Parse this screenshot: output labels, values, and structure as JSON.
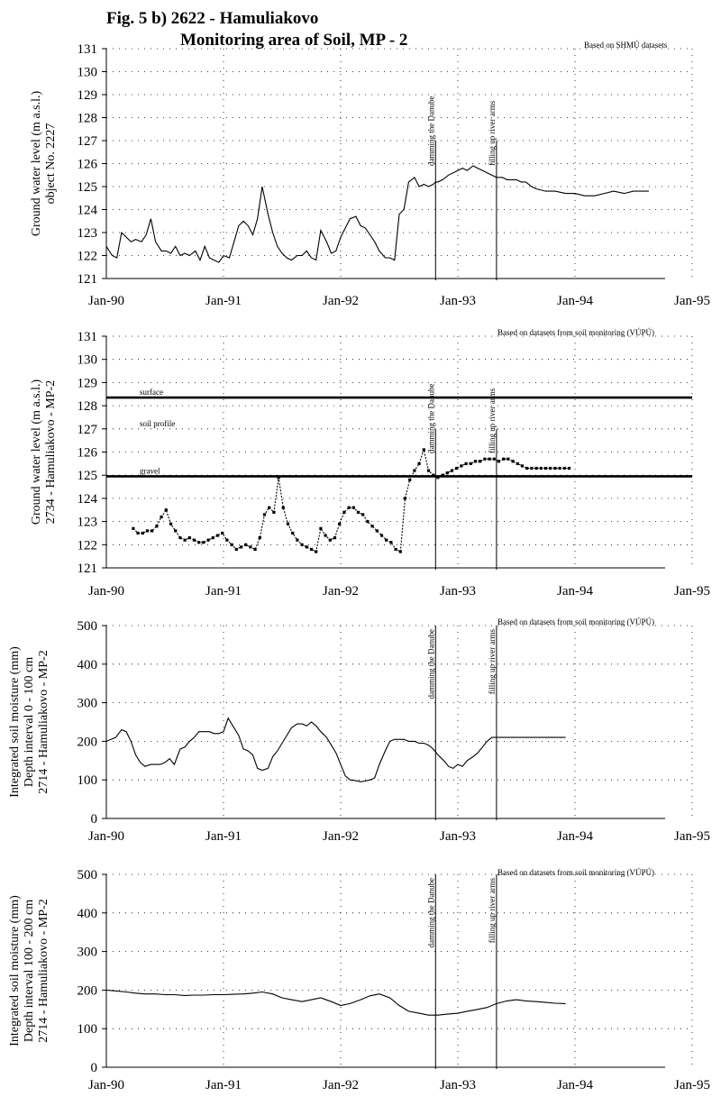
{
  "figure": {
    "title_line1": "Fig. 5 b)  2622 - Hamuliakovo",
    "title_line2": "Monitoring area of Soil, MP - 2"
  },
  "chart_data": [
    {
      "type": "line",
      "source_note": "Based on SHMÚ datasets",
      "ylabel": [
        "Ground water level (m a.s.l.)",
        "object No. 2227"
      ],
      "ylim": [
        121,
        131
      ],
      "yticks": [
        "121",
        "122",
        "123",
        "124",
        "125",
        "126",
        "127",
        "128",
        "129",
        "130",
        "131"
      ],
      "xlim": [
        1990.0,
        1995.0
      ],
      "xticks": [
        "Jan-90",
        "Jan-91",
        "Jan-92",
        "Jan-93",
        "Jan-94",
        "Jan-95"
      ],
      "grid": "dotted",
      "events": [
        {
          "label": "damming the Danube",
          "x": 1992.81
        },
        {
          "label": "filling up river arms",
          "x": 1993.33
        }
      ],
      "series": [
        {
          "x": [
            1990.0,
            1990.05,
            1990.09,
            1990.13,
            1990.17,
            1990.21,
            1990.25,
            1990.3,
            1990.34,
            1990.38,
            1990.42,
            1990.47,
            1990.51,
            1990.55,
            1990.59,
            1990.63,
            1990.67,
            1990.71,
            1990.76,
            1990.8,
            1990.84,
            1990.88,
            1990.92,
            1990.96,
            1991.0,
            1991.05,
            1991.09,
            1991.13,
            1991.17,
            1991.21,
            1991.25,
            1991.29,
            1991.33,
            1991.38,
            1991.42,
            1991.46,
            1991.5,
            1991.54,
            1991.58,
            1991.63,
            1991.67,
            1991.71,
            1991.75,
            1991.79,
            1991.83,
            1991.88,
            1991.92,
            1991.96,
            1992.0,
            1992.04,
            1992.08,
            1992.13,
            1992.17,
            1992.21,
            1992.25,
            1992.29,
            1992.33,
            1992.38,
            1992.42,
            1992.46,
            1992.5,
            1992.54,
            1992.58,
            1992.63,
            1992.67,
            1992.71,
            1992.75,
            1992.79,
            1992.81,
            1992.83,
            1992.87,
            1992.92,
            1992.96,
            1993.0,
            1993.04,
            1993.08,
            1993.13,
            1993.17,
            1993.21,
            1993.25,
            1993.29,
            1993.33,
            1993.38,
            1993.42,
            1993.46,
            1993.5,
            1993.54,
            1993.58,
            1993.63,
            1993.67,
            1993.75,
            1993.83,
            1993.92,
            1994.0,
            1994.08,
            1994.17,
            1994.25,
            1994.33,
            1994.42,
            1994.5,
            1994.58,
            1994.63
          ],
          "y": [
            122.4,
            122.0,
            121.9,
            123.0,
            122.8,
            122.6,
            122.7,
            122.6,
            122.9,
            123.6,
            122.6,
            122.2,
            122.2,
            122.1,
            122.4,
            122.0,
            122.1,
            122.0,
            122.2,
            121.8,
            122.4,
            121.9,
            121.8,
            121.7,
            122.0,
            121.9,
            122.6,
            123.3,
            123.5,
            123.3,
            122.9,
            123.6,
            125.0,
            123.8,
            123.0,
            122.4,
            122.1,
            121.9,
            121.8,
            122.0,
            122.0,
            122.2,
            121.9,
            121.8,
            123.1,
            122.6,
            122.1,
            122.2,
            122.8,
            123.2,
            123.6,
            123.7,
            123.3,
            123.2,
            122.9,
            122.6,
            122.2,
            121.9,
            121.9,
            121.8,
            123.8,
            124.0,
            125.2,
            125.4,
            125.0,
            125.1,
            125.0,
            125.1,
            125.2,
            125.2,
            125.3,
            125.5,
            125.6,
            125.7,
            125.8,
            125.7,
            125.9,
            125.8,
            125.7,
            125.6,
            125.5,
            125.4,
            125.4,
            125.3,
            125.3,
            125.3,
            125.2,
            125.2,
            125.0,
            124.9,
            124.8,
            124.8,
            124.7,
            124.7,
            124.6,
            124.6,
            124.7,
            124.8,
            124.7,
            124.8,
            124.8,
            124.8
          ]
        }
      ]
    },
    {
      "type": "line",
      "source_note": "Based on datasets from soil monitoring (VÚPÚ)",
      "ylabel": [
        "Ground water level (m a.s.l.)",
        "2734 - Hamuliakovo - MP-2"
      ],
      "ylim": [
        121,
        131
      ],
      "yticks": [
        "121",
        "122",
        "123",
        "124",
        "125",
        "126",
        "127",
        "128",
        "129",
        "130",
        "131"
      ],
      "xlim": [
        1990.0,
        1995.0
      ],
      "xticks": [
        "Jan-90",
        "Jan-91",
        "Jan-92",
        "Jan-93",
        "Jan-94",
        "Jan-95"
      ],
      "grid": "dotted",
      "levels": [
        {
          "label": "surface",
          "y": 128.35
        },
        {
          "label": "soil profile",
          "y": 127.0
        },
        {
          "label": "gravel",
          "y": 124.95
        }
      ],
      "events": [
        {
          "label": "damming the Danube",
          "x": 1992.81
        },
        {
          "label": "filling up river arms",
          "x": 1993.33
        }
      ],
      "series": [
        {
          "x": [
            1990.23,
            1990.27,
            1990.31,
            1990.35,
            1990.39,
            1990.43,
            1990.47,
            1990.51,
            1990.55,
            1990.59,
            1990.63,
            1990.67,
            1990.71,
            1990.75,
            1990.79,
            1990.83,
            1990.87,
            1990.91,
            1990.95,
            1990.99,
            1991.03,
            1991.07,
            1991.11,
            1991.15,
            1991.19,
            1991.23,
            1991.27,
            1991.31,
            1991.35,
            1991.39,
            1991.43,
            1991.47,
            1991.51,
            1991.55,
            1991.59,
            1991.63,
            1991.67,
            1991.71,
            1991.75,
            1991.79,
            1991.83,
            1991.87,
            1991.91,
            1991.95,
            1991.99,
            1992.03,
            1992.07,
            1992.11,
            1992.15,
            1992.19,
            1992.23,
            1992.27,
            1992.31,
            1992.35,
            1992.39,
            1992.43,
            1992.47,
            1992.51,
            1992.55,
            1992.59,
            1992.63,
            1992.67,
            1992.71,
            1992.75,
            1992.79,
            1992.83,
            1992.87,
            1992.91,
            1992.95,
            1992.99,
            1993.03,
            1993.07,
            1993.11,
            1993.15,
            1993.19,
            1993.23,
            1993.27,
            1993.31,
            1993.35,
            1993.39,
            1993.43,
            1993.47,
            1993.51,
            1993.55,
            1993.59,
            1993.63,
            1993.67,
            1993.71,
            1993.75,
            1993.79,
            1993.83,
            1993.87,
            1993.91,
            1993.95
          ],
          "y": [
            122.7,
            122.5,
            122.5,
            122.6,
            122.6,
            122.8,
            123.2,
            123.5,
            122.9,
            122.6,
            122.3,
            122.2,
            122.3,
            122.2,
            122.1,
            122.1,
            122.2,
            122.3,
            122.4,
            122.5,
            122.2,
            122.0,
            121.8,
            121.9,
            122.0,
            121.9,
            121.8,
            122.3,
            123.3,
            123.6,
            123.4,
            124.9,
            123.6,
            122.9,
            122.5,
            122.2,
            122.0,
            121.9,
            121.8,
            121.7,
            122.7,
            122.4,
            122.2,
            122.3,
            122.9,
            123.4,
            123.6,
            123.6,
            123.4,
            123.3,
            123.0,
            122.8,
            122.6,
            122.4,
            122.2,
            122.1,
            121.8,
            121.7,
            124.0,
            124.8,
            125.2,
            125.5,
            126.1,
            125.2,
            125.0,
            124.9,
            125.0,
            125.1,
            125.2,
            125.3,
            125.4,
            125.5,
            125.5,
            125.6,
            125.6,
            125.7,
            125.7,
            125.7,
            125.6,
            125.7,
            125.7,
            125.6,
            125.5,
            125.4,
            125.3,
            125.3,
            125.3,
            125.3,
            125.3,
            125.3,
            125.3,
            125.3,
            125.3,
            125.3
          ]
        }
      ]
    },
    {
      "type": "line",
      "source_note": "Based on datasets from soil monitoring (VÚPÚ)",
      "ylabel": [
        "Integrated soil moisture (mm)",
        "Depth interval  0 - 100 cm",
        "2714 - Hamuliakovo - MP-2"
      ],
      "ylim": [
        0,
        500
      ],
      "yticks": [
        "0",
        "100",
        "200",
        "300",
        "400",
        "500"
      ],
      "xlim": [
        1990.0,
        1995.0
      ],
      "xticks": [
        "Jan-90",
        "Jan-91",
        "Jan-92",
        "Jan-93",
        "Jan-94",
        "Jan-95"
      ],
      "grid": "dotted",
      "events": [
        {
          "label": "damming the Danube",
          "x": 1992.81
        },
        {
          "label": "filling up river arms",
          "x": 1993.33
        }
      ],
      "series": [
        {
          "x": [
            1990.0,
            1990.04,
            1990.08,
            1990.13,
            1990.17,
            1990.21,
            1990.25,
            1990.29,
            1990.33,
            1990.38,
            1990.42,
            1990.46,
            1990.5,
            1990.54,
            1990.58,
            1990.63,
            1990.67,
            1990.71,
            1990.75,
            1990.79,
            1990.83,
            1990.88,
            1990.92,
            1990.96,
            1991.0,
            1991.04,
            1991.08,
            1991.13,
            1991.17,
            1991.21,
            1991.25,
            1991.29,
            1991.33,
            1991.38,
            1991.42,
            1991.46,
            1991.5,
            1991.54,
            1991.58,
            1991.63,
            1991.67,
            1991.71,
            1991.75,
            1991.79,
            1991.83,
            1991.88,
            1991.92,
            1991.96,
            1992.0,
            1992.04,
            1992.08,
            1992.13,
            1992.17,
            1992.21,
            1992.25,
            1992.29,
            1992.33,
            1992.38,
            1992.42,
            1992.46,
            1992.5,
            1992.54,
            1992.58,
            1992.63,
            1992.67,
            1992.71,
            1992.75,
            1992.79,
            1992.83,
            1992.88,
            1992.92,
            1992.96,
            1993.0,
            1993.04,
            1993.08,
            1993.13,
            1993.17,
            1993.21,
            1993.25,
            1993.29,
            1993.33,
            1993.38,
            1993.42,
            1993.46,
            1993.5,
            1993.54,
            1993.58,
            1993.63,
            1993.67,
            1993.71,
            1993.75,
            1993.79,
            1993.83,
            1993.88,
            1993.92
          ],
          "y": [
            200,
            205,
            210,
            230,
            225,
            200,
            165,
            145,
            135,
            140,
            140,
            140,
            145,
            155,
            140,
            180,
            185,
            200,
            210,
            225,
            225,
            225,
            220,
            220,
            225,
            260,
            240,
            215,
            180,
            175,
            165,
            130,
            125,
            130,
            160,
            175,
            195,
            215,
            235,
            245,
            245,
            240,
            250,
            240,
            225,
            210,
            190,
            170,
            140,
            110,
            100,
            98,
            95,
            97,
            100,
            105,
            140,
            175,
            200,
            205,
            205,
            205,
            200,
            200,
            195,
            195,
            190,
            180,
            165,
            150,
            135,
            130,
            140,
            135,
            150,
            160,
            170,
            185,
            200,
            210,
            210,
            210,
            210,
            210,
            210,
            210,
            210,
            210,
            210,
            210,
            210,
            210,
            210,
            210,
            210
          ]
        }
      ]
    },
    {
      "type": "line",
      "source_note": "Based on datasets from soil monitoring (VÚPÚ)",
      "ylabel": [
        "Integrated soil moisture (mm)",
        "Depth interval  100 - 200 cm",
        "2714 - Hamuliakovo - MP-2"
      ],
      "ylim": [
        0,
        500
      ],
      "yticks": [
        "0",
        "100",
        "200",
        "300",
        "400",
        "500"
      ],
      "xlim": [
        1990.0,
        1995.0
      ],
      "xticks": [
        "Jan-90",
        "Jan-91",
        "Jan-92",
        "Jan-93",
        "Jan-94",
        "Jan-95"
      ],
      "grid": "dotted",
      "events": [
        {
          "label": "damming the Danube",
          "x": 1992.81
        },
        {
          "label": "filling up river arms",
          "x": 1993.33
        }
      ],
      "series": [
        {
          "x": [
            1990.0,
            1990.08,
            1990.17,
            1990.25,
            1990.33,
            1990.42,
            1990.5,
            1990.58,
            1990.67,
            1990.75,
            1990.83,
            1990.92,
            1991.0,
            1991.08,
            1991.17,
            1991.25,
            1991.33,
            1991.42,
            1991.5,
            1991.58,
            1991.67,
            1991.75,
            1991.83,
            1991.92,
            1992.0,
            1992.08,
            1992.17,
            1992.25,
            1992.33,
            1992.42,
            1992.5,
            1992.58,
            1992.67,
            1992.75,
            1992.83,
            1992.92,
            1993.0,
            1993.08,
            1993.17,
            1993.25,
            1993.33,
            1993.42,
            1993.5,
            1993.58,
            1993.67,
            1993.75,
            1993.83,
            1993.92
          ],
          "y": [
            200,
            198,
            195,
            192,
            190,
            190,
            188,
            188,
            186,
            187,
            187,
            188,
            188,
            189,
            190,
            192,
            195,
            190,
            180,
            175,
            170,
            175,
            180,
            170,
            160,
            165,
            175,
            185,
            190,
            180,
            160,
            145,
            140,
            135,
            135,
            138,
            140,
            145,
            150,
            155,
            165,
            172,
            175,
            172,
            170,
            168,
            166,
            165
          ]
        }
      ]
    }
  ]
}
